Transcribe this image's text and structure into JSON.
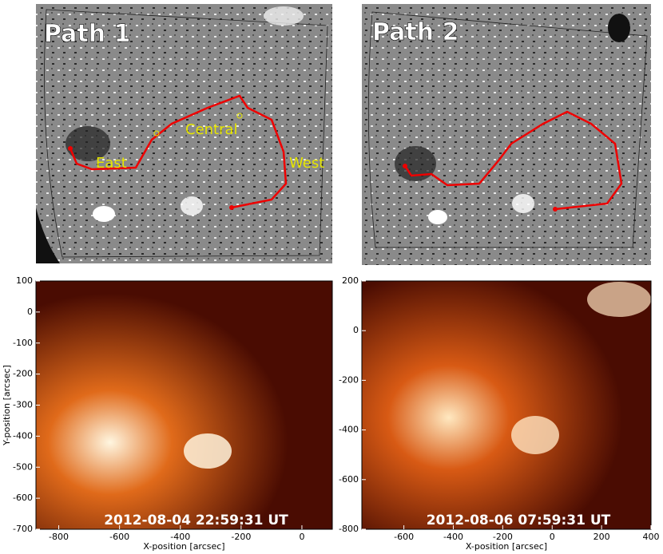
{
  "panels": [
    {
      "label": "Path 1",
      "annotations": [
        "East",
        "Central",
        "West"
      ]
    },
    {
      "label": "Path 2"
    },
    {
      "timestamp": "2012-08-04 22:59:31 UT",
      "xlabel": "X-position [arcsec]",
      "ylabel": "Y-position [arcsec]",
      "xlim": [
        -875,
        100
      ],
      "ylim": [
        -700,
        100
      ],
      "xticks": [
        -800,
        -600,
        -400,
        -200,
        0
      ],
      "yticks": [
        -700,
        -600,
        -500,
        -400,
        -300,
        -200,
        -100,
        0,
        100
      ]
    },
    {
      "timestamp": "2012-08-06 07:59:31 UT",
      "xlabel": "X-position [arcsec]",
      "xlim": [
        -770,
        400
      ],
      "ylim": [
        -800,
        200
      ],
      "xticks": [
        -600,
        -400,
        -200,
        0,
        200,
        400
      ],
      "yticks": [
        -800,
        -600,
        -400,
        -200,
        0,
        200
      ]
    }
  ]
}
